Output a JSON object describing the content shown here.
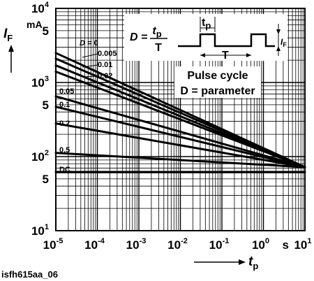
{
  "chart_data": {
    "type": "line",
    "x_scale": "log",
    "y_scale": "log",
    "xlim": [
      1e-05,
      10
    ],
    "ylim": [
      10,
      10000
    ],
    "xlabel": "t",
    "xlabel_sub": "p",
    "xunit": "s",
    "ylabel": "I",
    "ylabel_sub": "F",
    "yunit": "mA",
    "grid": true,
    "legend_placement": "inline-left",
    "series_prefix": "D = ",
    "x_ticks": [
      {
        "base": "10",
        "exp": "-5"
      },
      {
        "base": "10",
        "exp": "-4"
      },
      {
        "base": "10",
        "exp": "-3"
      },
      {
        "base": "10",
        "exp": "-2"
      },
      {
        "base": "10",
        "exp": "-1"
      },
      {
        "base": "10",
        "exp": "0"
      },
      {
        "base": "10",
        "exp": "1"
      }
    ],
    "y_ticks": [
      {
        "value": 10,
        "base": "10",
        "exp": "1"
      },
      {
        "value": 50,
        "label": "5"
      },
      {
        "value": 100,
        "base": "10",
        "exp": "2"
      },
      {
        "value": 500,
        "label": "5"
      },
      {
        "value": 1000,
        "base": "10",
        "exp": "3"
      },
      {
        "value": 5000,
        "label": "5"
      },
      {
        "value": 10000,
        "base": "10",
        "exp": "4"
      }
    ],
    "series": [
      {
        "name": "0",
        "x": [
          1e-05,
          10
        ],
        "y": [
          2500,
          72
        ]
      },
      {
        "name": "0.005",
        "x": [
          1e-05,
          10
        ],
        "y": [
          2100,
          72
        ]
      },
      {
        "name": "0.01",
        "x": [
          1e-05,
          10
        ],
        "y": [
          1700,
          72
        ]
      },
      {
        "name": "0.02",
        "x": [
          1e-05,
          10
        ],
        "y": [
          1400,
          72
        ]
      },
      {
        "name": "0.05",
        "x": [
          1e-05,
          10
        ],
        "y": [
          650,
          72
        ]
      },
      {
        "name": "0.1",
        "x": [
          1e-05,
          10
        ],
        "y": [
          470,
          72
        ]
      },
      {
        "name": "0.2",
        "x": [
          1e-05,
          10
        ],
        "y": [
          280,
          72
        ]
      },
      {
        "name": "0.5",
        "x": [
          1e-05,
          10
        ],
        "y": [
          112,
          72
        ]
      },
      {
        "name": "DC",
        "x": [
          1e-05,
          10
        ],
        "y": [
          62,
          62
        ]
      }
    ],
    "inset": {
      "formula_lhs": "D =",
      "formula_num": "t",
      "formula_num_sub": "p",
      "formula_den": "T",
      "pulse_width_label": "t",
      "pulse_width_sub": "p",
      "period_label": "T",
      "amplitude_label": "I",
      "amplitude_sub": "F"
    },
    "annotations": [
      "Pulse cycle",
      "D = parameter"
    ]
  },
  "caption": "isfh615aa_06",
  "colors": {
    "line": "#000000",
    "grid": "#000000",
    "background": "#ffffff"
  }
}
